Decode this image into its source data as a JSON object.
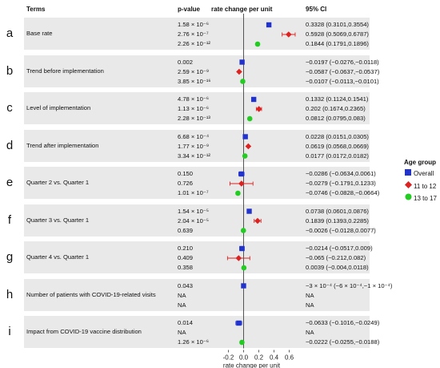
{
  "headers": {
    "terms": "Terms",
    "pvalue": "p-value",
    "effect": "rate change per unit",
    "ci": "95% CI"
  },
  "colors": {
    "overall": "#2233cc",
    "age_11_12": "#dd2222",
    "age_13_17": "#22cc22",
    "band": "#e9e9e9"
  },
  "legend": {
    "title": "Age group",
    "items": [
      {
        "label": "Overall",
        "marker": "square"
      },
      {
        "label": "11 to 12",
        "marker": "diamond"
      },
      {
        "label": "13 to 17",
        "marker": "circle"
      }
    ]
  },
  "rows": [
    {
      "letter": "a",
      "term": "Base rate",
      "pvalues": [
        "1.58 × 10⁻⁶",
        "2.76 × 10⁻⁷",
        "2.26 × 10⁻¹²"
      ],
      "cis": [
        "0.3328 (0.3101,0.3554)",
        "0.5928 (0.5069,0.6787)",
        "0.1844 (0.1791,0.1896)"
      ]
    },
    {
      "letter": "b",
      "term": "Trend before implementation",
      "pvalues": [
        "0.002",
        "2.59 × 10⁻⁹",
        "3.85 × 10⁻¹⁶"
      ],
      "cis": [
        "−0.0197 (−0.0276,−0.0118)",
        "−0.0587 (−0.0637,−0.0537)",
        "−0.0107 (−0.0113,−0.0101)"
      ]
    },
    {
      "letter": "c",
      "term": "Level of implementation",
      "pvalues": [
        "4.78 × 10⁻⁶",
        "1.13 × 10⁻⁶",
        "2.28 × 10⁻¹³"
      ],
      "cis": [
        "0.1332 (0.1124,0.1541)",
        "0.202 (0.1674,0.2365)",
        "0.0812 (0.0795,0.083)"
      ]
    },
    {
      "letter": "d",
      "term": "Trend after implementation",
      "pvalues": [
        "6.68 × 10⁻⁴",
        "1.77 × 10⁻⁹",
        "3.34 × 10⁻¹²"
      ],
      "cis": [
        "0.0228 (0.0151,0.0305)",
        "0.0619 (0.0568,0.0669)",
        "0.0177 (0.0172,0.0182)"
      ]
    },
    {
      "letter": "e",
      "term": "Quarter 2 vs. Quarter 1",
      "pvalues": [
        "0.150",
        "0.726",
        "1.01 × 10⁻⁷"
      ],
      "cis": [
        "−0.0286 (−0.0634,0.0061)",
        "−0.0279 (−0.1791,0.1233)",
        "−0.0746 (−0.0828,−0.0664)"
      ]
    },
    {
      "letter": "f",
      "term": "Quarter 3 vs. Quarter 1",
      "pvalues": [
        "1.54 × 10⁻⁵",
        "2.04 × 10⁻⁵",
        "0.639"
      ],
      "cis": [
        "0.0738 (0.0601,0.0876)",
        "0.1839 (0.1393,0.2285)",
        "−0.0026 (−0.0128,0.0077)"
      ]
    },
    {
      "letter": "g",
      "term": "Quarter 4 vs. Quarter 1",
      "pvalues": [
        "0.210",
        "0.409",
        "0.358"
      ],
      "cis": [
        "−0.0214 (−0.0517,0.009)",
        "−0.065 (−0.212,0.082)",
        "0.0039 (−0.004,0.0118)"
      ]
    },
    {
      "letter": "h",
      "term": "Number of patients with COVID-19-related visits",
      "pvalues": [
        "0.043",
        "NA",
        "NA"
      ],
      "cis": [
        "−3 × 10⁻⁴ (−6 × 10⁻⁴,−1 × 10⁻⁴)",
        "NA",
        "NA"
      ]
    },
    {
      "letter": "i",
      "term": "Impact from COVID-19 vaccine distribution",
      "pvalues": [
        "0.014",
        "NA",
        "1.26 × 10⁻⁶"
      ],
      "cis": [
        "−0.0633 (−0.1016,−0.0249)",
        "NA",
        "−0.0222 (−0.0255,−0.0188)"
      ]
    }
  ],
  "chart_data": {
    "type": "scatter",
    "xlabel": "rate change per unit",
    "xlim": [
      -0.35,
      0.7
    ],
    "xticks": [
      -0.2,
      0.0,
      0.2,
      0.4,
      0.6
    ],
    "xtick_labels": [
      "-0.2",
      "0.0",
      "0.2",
      "0.4",
      "0.6"
    ],
    "reference_line": 0,
    "series": [
      {
        "name": "Overall",
        "marker": "square",
        "values": [
          0.3328,
          -0.0197,
          0.1332,
          0.0228,
          -0.0286,
          0.0738,
          -0.0214,
          -0.0003,
          -0.0633
        ],
        "lower": [
          0.3101,
          -0.0276,
          0.1124,
          0.0151,
          -0.0634,
          0.0601,
          -0.0517,
          -0.0006,
          -0.1016
        ],
        "upper": [
          0.3554,
          -0.0118,
          0.1541,
          0.0305,
          0.0061,
          0.0876,
          0.009,
          -0.0001,
          -0.0249
        ]
      },
      {
        "name": "11 to 12",
        "marker": "diamond",
        "values": [
          0.5928,
          -0.0587,
          0.202,
          0.0619,
          -0.0279,
          0.1839,
          -0.065,
          null,
          null
        ],
        "lower": [
          0.5069,
          -0.0637,
          0.1674,
          0.0568,
          -0.1791,
          0.1393,
          -0.212,
          null,
          null
        ],
        "upper": [
          0.6787,
          -0.0537,
          0.2365,
          0.0669,
          0.1233,
          0.2285,
          0.082,
          null,
          null
        ]
      },
      {
        "name": "13 to 17",
        "marker": "circle",
        "values": [
          0.1844,
          -0.0107,
          0.0812,
          0.0177,
          -0.0746,
          -0.0026,
          0.0039,
          null,
          -0.0222
        ],
        "lower": [
          0.1791,
          -0.0113,
          0.0795,
          0.0172,
          -0.0828,
          -0.0128,
          -0.004,
          null,
          -0.0255
        ],
        "upper": [
          0.1896,
          -0.0101,
          0.083,
          0.0182,
          -0.0664,
          0.0077,
          0.0118,
          null,
          -0.0188
        ]
      }
    ]
  }
}
